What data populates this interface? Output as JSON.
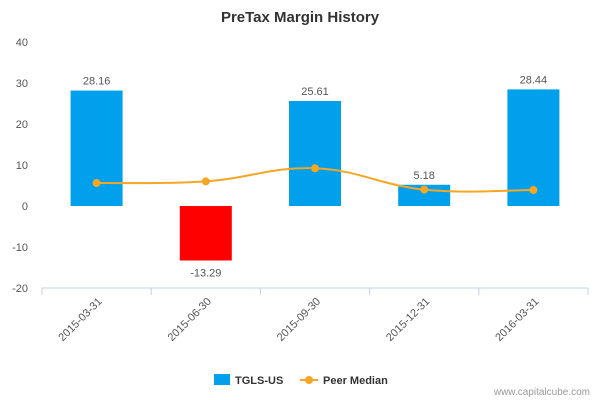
{
  "chart_data": {
    "type": "bar",
    "title": "PreTax Margin History",
    "categories": [
      "2015-03-31",
      "2015-06-30",
      "2015-09-30",
      "2015-12-31",
      "2016-03-31"
    ],
    "series": [
      {
        "name": "TGLS-US",
        "type": "bar",
        "values": [
          28.16,
          -13.29,
          25.61,
          5.18,
          28.44
        ],
        "color": "#00a0ec",
        "negative_color": "#ff0000"
      },
      {
        "name": "Peer Median",
        "type": "line",
        "values": [
          5.6,
          6.0,
          9.2,
          4.0,
          3.9
        ],
        "color": "#f5a623"
      }
    ],
    "data_labels": [
      "28.16",
      "-13.29",
      "25.61",
      "5.18",
      "28.44"
    ],
    "yticks": [
      40,
      30,
      20,
      10,
      0,
      -10,
      -20
    ],
    "ylim": [
      -20,
      40
    ],
    "xlabel": "",
    "ylabel": "",
    "grid": false,
    "legend_position": "bottom-center"
  },
  "credit": "www.capitalcube.com"
}
